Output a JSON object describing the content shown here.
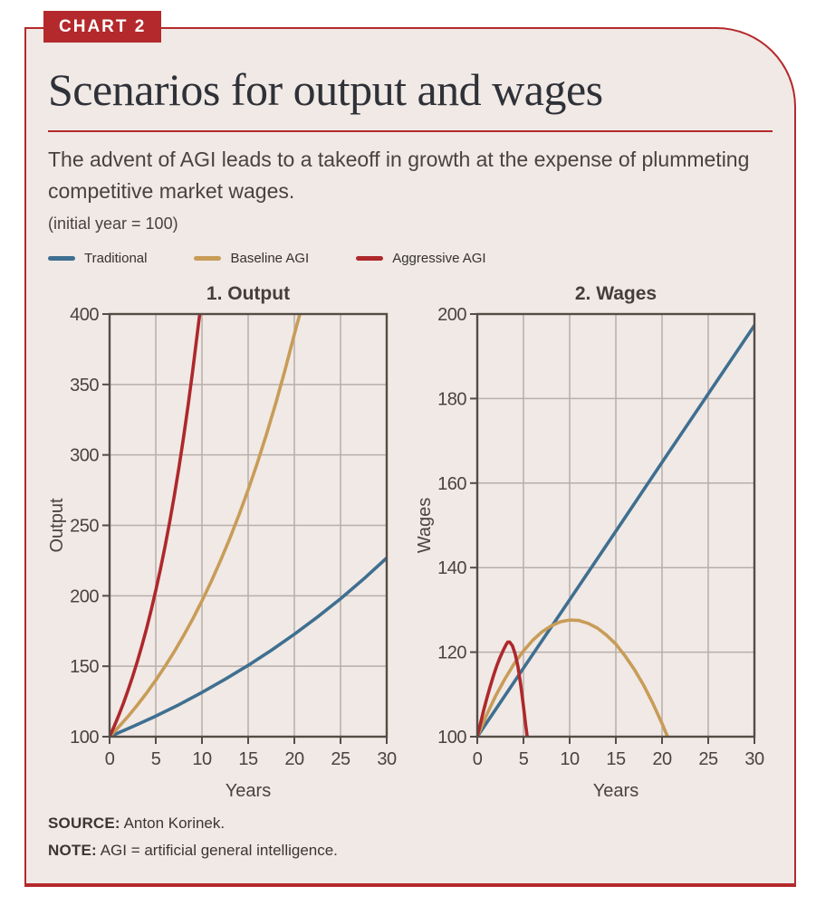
{
  "badge": "CHART 2",
  "title": "Scenarios for output and wages",
  "subtitle": "The advent of AGI leads to a takeoff in growth at the expense of plummeting competitive market wages.",
  "units_note": "(initial year = 100)",
  "legend": [
    {
      "label": "Traditional",
      "color": "#3f6f90"
    },
    {
      "label": "Baseline AGI",
      "color": "#c89c58"
    },
    {
      "label": "Aggressive AGI",
      "color": "#ae282c"
    }
  ],
  "footer": {
    "source_label": "SOURCE:",
    "source_text": "Anton Korinek.",
    "note_label": "NOTE:",
    "note_text": "AGI = artificial general intelligence."
  },
  "colors": {
    "accent": "#b4292c",
    "box_bg": "#f0e9e5",
    "frame": "#564c46",
    "grid": "#b8aeaa",
    "tick_text": "#4c423e",
    "title_text": "#2f3138",
    "body_text": "#474340"
  },
  "chart_data": [
    {
      "type": "line",
      "title": "1. Output",
      "xlabel": "Years",
      "ylabel": "Output",
      "xlim": [
        0,
        30
      ],
      "ylim": [
        100,
        400
      ],
      "xticks": [
        0,
        5,
        10,
        15,
        20,
        25,
        30
      ],
      "yticks": [
        100,
        150,
        200,
        250,
        300,
        350,
        400
      ],
      "grid": true,
      "legend_position": "top-left-shared",
      "series": [
        {
          "name": "Traditional",
          "color": "#3f6f90",
          "points": [
            [
              0,
              100
            ],
            [
              2.5,
              107.1
            ],
            [
              5,
              114.6
            ],
            [
              7.5,
              122.7
            ],
            [
              10,
              131.4
            ],
            [
              12.5,
              140.7
            ],
            [
              15,
              150.6
            ],
            [
              17.5,
              161.3
            ],
            [
              20,
              172.7
            ],
            [
              22.5,
              184.9
            ],
            [
              25,
              197.9
            ],
            [
              27.5,
              211.9
            ],
            [
              30,
              226.9
            ]
          ]
        },
        {
          "name": "Baseline AGI",
          "color": "#c89c58",
          "points": [
            [
              0,
              100
            ],
            [
              1,
              107
            ],
            [
              2,
              114.4
            ],
            [
              3,
              122.4
            ],
            [
              4,
              130.9
            ],
            [
              5,
              140.1
            ],
            [
              6,
              149.9
            ],
            [
              7,
              160.3
            ],
            [
              8,
              171.6
            ],
            [
              9,
              183.5
            ],
            [
              10,
              196.4
            ],
            [
              11,
              210.1
            ],
            [
              12,
              224.8
            ],
            [
              13,
              240.5
            ],
            [
              14,
              257.3
            ],
            [
              15,
              275.2
            ],
            [
              16,
              294.4
            ],
            [
              17,
              315
            ],
            [
              18,
              336.9
            ],
            [
              19,
              360.5
            ],
            [
              20,
              385.6
            ],
            [
              20.8,
              405
            ]
          ]
        },
        {
          "name": "Aggressive AGI",
          "color": "#ae282c",
          "points": [
            [
              0,
              100
            ],
            [
              0.5,
              107.4
            ],
            [
              1,
              115.3
            ],
            [
              1.5,
              123.8
            ],
            [
              2,
              133
            ],
            [
              2.5,
              142.8
            ],
            [
              3,
              153.3
            ],
            [
              3.5,
              164.6
            ],
            [
              4,
              176.7
            ],
            [
              4.5,
              189.8
            ],
            [
              5,
              203.8
            ],
            [
              5.5,
              218.8
            ],
            [
              6,
              234.9
            ],
            [
              6.5,
              252.2
            ],
            [
              7,
              270.8
            ],
            [
              7.5,
              290.7
            ],
            [
              8,
              312.2
            ],
            [
              8.5,
              335.2
            ],
            [
              9,
              359.9
            ],
            [
              9.5,
              386.4
            ],
            [
              9.95,
              410
            ]
          ]
        }
      ]
    },
    {
      "type": "line",
      "title": "2. Wages",
      "xlabel": "Years",
      "ylabel": "Wages",
      "xlim": [
        0,
        30
      ],
      "ylim": [
        100,
        200
      ],
      "xticks": [
        0,
        5,
        10,
        15,
        20,
        25,
        30
      ],
      "yticks": [
        100,
        120,
        140,
        160,
        180,
        200
      ],
      "grid": true,
      "series": [
        {
          "name": "Traditional",
          "color": "#3f6f90",
          "points": [
            [
              0,
              100
            ],
            [
              5,
              116.2
            ],
            [
              10,
              132.4
            ],
            [
              15,
              148.6
            ],
            [
              20,
              164.9
            ],
            [
              25,
              181.1
            ],
            [
              30,
              197.3
            ]
          ]
        },
        {
          "name": "Baseline AGI",
          "color": "#c89c58",
          "points": [
            [
              0,
              100
            ],
            [
              1,
              105.1
            ],
            [
              2,
              109.7
            ],
            [
              3,
              113.7
            ],
            [
              4,
              117.3
            ],
            [
              5,
              120.3
            ],
            [
              6,
              122.8
            ],
            [
              7,
              124.8
            ],
            [
              8,
              126.2
            ],
            [
              9,
              127.2
            ],
            [
              10,
              127.6
            ],
            [
              11,
              127.5
            ],
            [
              12,
              126.8
            ],
            [
              13,
              125.7
            ],
            [
              14,
              124
            ],
            [
              15,
              121.9
            ],
            [
              16,
              119.1
            ],
            [
              17,
              115.9
            ],
            [
              18,
              112.2
            ],
            [
              19,
              107.9
            ],
            [
              20,
              103.1
            ],
            [
              20.6,
              100
            ]
          ]
        },
        {
          "name": "Aggressive AGI",
          "color": "#ae282c",
          "points": [
            [
              0,
              100
            ],
            [
              0.35,
              103.2
            ],
            [
              0.7,
              106.3
            ],
            [
              1.05,
              109.2
            ],
            [
              1.4,
              111.9
            ],
            [
              1.75,
              114.4
            ],
            [
              2.1,
              116.7
            ],
            [
              2.45,
              118.7
            ],
            [
              2.8,
              120.4
            ],
            [
              3.1,
              121.7
            ],
            [
              3.3,
              122.4
            ],
            [
              3.5,
              122.4
            ],
            [
              3.8,
              121.5
            ],
            [
              4.1,
              119.6
            ],
            [
              4.4,
              116.6
            ],
            [
              4.7,
              112.4
            ],
            [
              5,
              107.2
            ],
            [
              5.2,
              103.5
            ],
            [
              5.4,
              100
            ]
          ]
        }
      ]
    }
  ]
}
